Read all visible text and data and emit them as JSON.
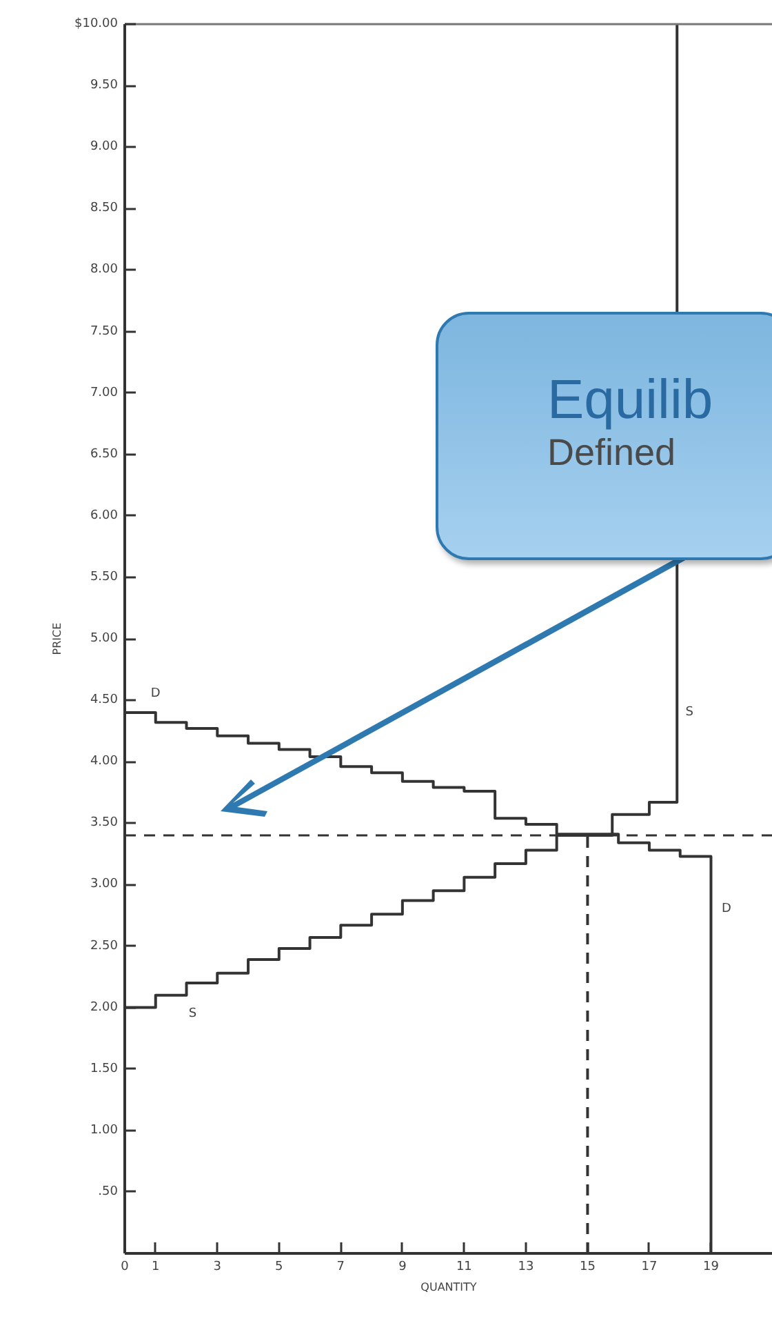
{
  "chart_data": {
    "type": "step",
    "xlabel": "QUANTITY",
    "ylabel": "PRICE",
    "xlim": [
      0,
      21
    ],
    "ylim": [
      0,
      10
    ],
    "xticks": [
      0,
      1,
      3,
      5,
      7,
      9,
      11,
      13,
      15,
      17,
      19
    ],
    "yticks": [
      {
        "value": 0,
        "label": null
      },
      {
        "value": 0.5,
        "label": ".50"
      },
      {
        "value": 1,
        "label": "1.00"
      },
      {
        "value": 1.5,
        "label": "1.50"
      },
      {
        "value": 2,
        "label": "2.00"
      },
      {
        "value": 2.5,
        "label": "2.50"
      },
      {
        "value": 3,
        "label": "3.00"
      },
      {
        "value": 3.5,
        "label": "3.50"
      },
      {
        "value": 4,
        "label": "4.00"
      },
      {
        "value": 4.5,
        "label": "4.50"
      },
      {
        "value": 5,
        "label": "5.00"
      },
      {
        "value": 5.5,
        "label": "5.50"
      },
      {
        "value": 6,
        "label": "6.00"
      },
      {
        "value": 6.5,
        "label": "6.50"
      },
      {
        "value": 7,
        "label": "7.00"
      },
      {
        "value": 7.5,
        "label": "7.50"
      },
      {
        "value": 8,
        "label": "8.00"
      },
      {
        "value": 8.5,
        "label": "8.50"
      },
      {
        "value": 9,
        "label": "9.00"
      },
      {
        "value": 9.5,
        "label": "9.50"
      },
      {
        "value": 10,
        "label": "$10.00"
      }
    ],
    "grid": false,
    "series": [
      {
        "color": "#333333",
        "x": [
          0,
          1,
          2,
          3,
          4,
          5,
          6,
          7,
          8,
          9,
          10,
          11,
          12,
          13,
          14,
          15,
          16,
          17,
          18,
          19,
          19
        ],
        "values": [
          4.4,
          4.32,
          4.27,
          4.21,
          4.15,
          4.1,
          4.04,
          3.96,
          3.91,
          3.84,
          3.79,
          3.76,
          3.54,
          3.49,
          3.41,
          3.41,
          3.34,
          3.28,
          3.23,
          3.23,
          0
        ]
      },
      {
        "color": "#333333",
        "x": [
          0,
          1,
          2,
          3,
          4,
          5,
          6,
          7,
          8,
          9,
          10,
          11,
          12,
          13,
          14,
          15.8,
          17,
          17.9,
          17.9
        ],
        "values": [
          2.0,
          2.1,
          2.2,
          2.28,
          2.39,
          2.48,
          2.57,
          2.67,
          2.76,
          2.87,
          2.95,
          3.06,
          3.17,
          3.28,
          3.4,
          3.57,
          3.67,
          3.67,
          10
        ]
      },
      {
        "type": "line",
        "line_style": "dashed",
        "color": "#333333",
        "x": [
          15,
          15
        ],
        "values": [
          0,
          3.4
        ]
      }
    ],
    "ref_lines": [
      {
        "axis": "y",
        "value": 3.4,
        "line_style": "dashed",
        "color": "#333333"
      }
    ],
    "annotations": [
      "D",
      "S",
      "S",
      "D",
      "Equilib",
      "Defined"
    ]
  }
}
